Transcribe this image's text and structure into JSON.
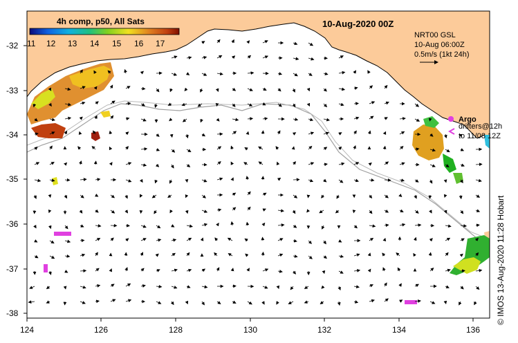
{
  "map_title": "10-Aug-2020 00Z",
  "colorbar": {
    "title": "4h comp, p50, All Sats",
    "tick_labels": [
      "11",
      "12",
      "13",
      "14",
      "15",
      "16",
      "17"
    ]
  },
  "current_note": {
    "line1": "NRT00 GSL",
    "line2": "10-Aug 06:00Z",
    "line3": "0.5m/s (1kt 24h)"
  },
  "legend": {
    "argo_label": "Argo",
    "drifters_line1": "drifters@12h",
    "drifters_line2": "to 11/08 12Z"
  },
  "credit": "© IMOS 13-Aug-2020 11:28 Hobart",
  "axes": {
    "x_ticks": [
      "124",
      "126",
      "128",
      "130",
      "132",
      "134",
      "136"
    ],
    "y_ticks": [
      "-32",
      "-33",
      "-34",
      "-35",
      "-36",
      "-37",
      "-38"
    ]
  },
  "colors": {
    "land": "#fccb9a",
    "argo": "#e040e0",
    "gradient": [
      "#0a0a7a",
      "#1060e0",
      "#10b0e0",
      "#20c080",
      "#80d020",
      "#f0e020",
      "#e08020",
      "#c04010",
      "#801000"
    ]
  }
}
